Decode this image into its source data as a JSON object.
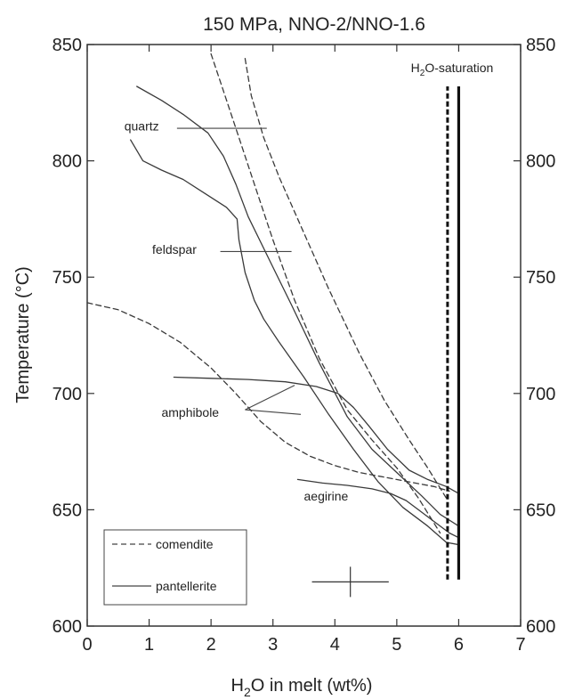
{
  "chart_data": {
    "type": "line",
    "title": "150 MPa, NNO-2/NNO-1.6",
    "xlabel": {
      "pre": "H",
      "sub": "2",
      "post": "O in melt (wt%)"
    },
    "ylabel": "Temperature (°C)",
    "xlim": [
      0,
      7
    ],
    "ylim": [
      600,
      850
    ],
    "xticks": [
      0,
      1,
      2,
      3,
      4,
      5,
      6,
      7
    ],
    "yticks": [
      600,
      650,
      700,
      750,
      800,
      850
    ],
    "grid": false,
    "legend": {
      "position": "bottom-left",
      "entries": [
        {
          "label": "comendite",
          "style": "dashed"
        },
        {
          "label": "pantellerite",
          "style": "solid"
        }
      ]
    },
    "saturation_label": {
      "pre": "H",
      "sub": "2",
      "post": "O-saturation"
    },
    "saturation_lines": [
      {
        "name": "comendite",
        "style": "dashed",
        "x": 5.82,
        "y": [
          620,
          832
        ]
      },
      {
        "name": "pantellerite",
        "style": "solid",
        "x": 6.0,
        "y": [
          620,
          832
        ]
      }
    ],
    "annotations": [
      {
        "label": "quartz",
        "x": 0.6,
        "y": 813
      },
      {
        "label": "feldspar",
        "x": 1.05,
        "y": 760
      },
      {
        "label": "amphibole",
        "x": 1.2,
        "y": 690
      },
      {
        "label": "aegirine",
        "x": 3.5,
        "y": 654
      }
    ],
    "leaders": [
      {
        "from": [
          1.45,
          814
        ],
        "to": [
          2.9,
          814
        ]
      },
      {
        "from": [
          2.15,
          761
        ],
        "to": [
          3.3,
          761
        ]
      },
      {
        "from": [
          2.55,
          693
        ],
        "to": [
          3.35,
          703.5
        ]
      },
      {
        "from": [
          2.55,
          693
        ],
        "to": [
          3.45,
          691
        ]
      }
    ],
    "error_bar": {
      "x": 4.25,
      "y": 619,
      "x_err": 0.62,
      "y_err": 6.5
    },
    "series": [
      {
        "mineral": "quartz",
        "rock": "comendite",
        "style": "dashed",
        "points": [
          [
            2.0,
            846
          ],
          [
            2.2,
            830
          ],
          [
            2.45,
            810
          ],
          [
            2.7,
            790
          ],
          [
            3.0,
            766
          ],
          [
            3.35,
            740
          ],
          [
            3.75,
            715
          ],
          [
            4.2,
            693
          ],
          [
            4.6,
            680
          ],
          [
            5.0,
            668
          ],
          [
            5.35,
            655
          ],
          [
            5.7,
            640
          ]
        ]
      },
      {
        "mineral": "feldspar",
        "rock": "comendite",
        "style": "dashed",
        "points": [
          [
            2.55,
            844
          ],
          [
            2.65,
            828
          ],
          [
            2.85,
            810
          ],
          [
            3.1,
            793
          ],
          [
            3.45,
            772
          ],
          [
            3.9,
            745
          ],
          [
            4.4,
            717
          ],
          [
            4.8,
            697
          ],
          [
            5.2,
            680
          ],
          [
            5.5,
            668
          ],
          [
            5.8,
            655
          ]
        ]
      },
      {
        "mineral": "amphibole",
        "rock": "comendite",
        "style": "dashed",
        "points": [
          [
            0.0,
            739
          ],
          [
            0.5,
            736
          ],
          [
            1.0,
            730
          ],
          [
            1.5,
            722
          ],
          [
            2.0,
            711
          ],
          [
            2.4,
            700
          ],
          [
            2.8,
            688
          ],
          [
            3.2,
            679
          ],
          [
            3.6,
            673
          ],
          [
            4.0,
            669
          ],
          [
            4.4,
            666
          ],
          [
            4.8,
            664
          ],
          [
            5.2,
            662
          ],
          [
            5.6,
            660
          ],
          [
            5.85,
            658
          ]
        ]
      },
      {
        "mineral": "quartz",
        "rock": "pantellerite",
        "style": "solid",
        "points": [
          [
            0.8,
            832
          ],
          [
            1.2,
            826
          ],
          [
            1.55,
            820
          ],
          [
            1.95,
            812
          ],
          [
            2.2,
            802
          ],
          [
            2.4,
            790
          ],
          [
            2.6,
            776
          ],
          [
            2.95,
            757
          ],
          [
            3.3,
            738
          ],
          [
            3.75,
            713
          ],
          [
            4.2,
            690
          ],
          [
            4.6,
            676
          ],
          [
            5.0,
            666
          ],
          [
            5.4,
            656
          ],
          [
            5.7,
            648
          ],
          [
            6.0,
            643
          ]
        ]
      },
      {
        "mineral": "feldspar",
        "rock": "pantellerite",
        "style": "solid",
        "points": [
          [
            0.7,
            809
          ],
          [
            0.9,
            800
          ],
          [
            1.2,
            796
          ],
          [
            1.55,
            792
          ],
          [
            1.9,
            786
          ],
          [
            2.25,
            780
          ],
          [
            2.42,
            775
          ],
          [
            2.45,
            766
          ],
          [
            2.55,
            752
          ],
          [
            2.7,
            740
          ],
          [
            2.85,
            732
          ],
          [
            3.1,
            722
          ],
          [
            3.5,
            707
          ],
          [
            3.9,
            691
          ],
          [
            4.3,
            676
          ],
          [
            4.7,
            662
          ],
          [
            5.1,
            651
          ],
          [
            5.5,
            643
          ],
          [
            5.8,
            636
          ],
          [
            6.0,
            635
          ]
        ]
      },
      {
        "mineral": "amphibole",
        "rock": "pantellerite",
        "style": "solid",
        "points": [
          [
            1.4,
            707
          ],
          [
            2.0,
            706.5
          ],
          [
            2.6,
            706
          ],
          [
            3.2,
            705
          ],
          [
            3.7,
            703
          ],
          [
            4.05,
            700
          ],
          [
            4.3,
            694
          ],
          [
            4.55,
            686
          ],
          [
            4.85,
            676
          ],
          [
            5.2,
            667
          ],
          [
            5.5,
            663
          ],
          [
            5.8,
            660
          ],
          [
            6.0,
            657
          ]
        ]
      },
      {
        "mineral": "aegirine",
        "rock": "pantellerite",
        "style": "solid",
        "points": [
          [
            3.4,
            663
          ],
          [
            3.8,
            661.5
          ],
          [
            4.2,
            660.5
          ],
          [
            4.6,
            659
          ],
          [
            4.9,
            657
          ],
          [
            5.15,
            654
          ],
          [
            5.35,
            650
          ],
          [
            5.6,
            645
          ],
          [
            5.85,
            640
          ],
          [
            6.0,
            638
          ]
        ]
      }
    ]
  }
}
